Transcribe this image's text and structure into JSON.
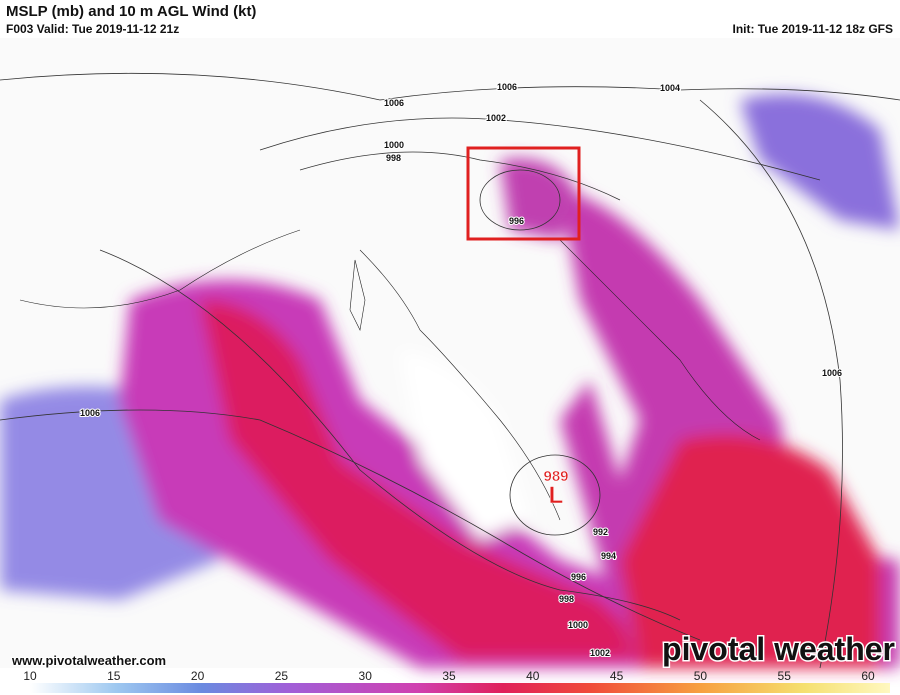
{
  "header": {
    "title": "MSLP (mb) and 10 m AGL Wind (kt)",
    "valid": "F003 Valid: Tue 2019-11-12 21z",
    "init": "Init: Tue 2019-11-12 18z GFS"
  },
  "isobar_labels": [
    "1006",
    "1006",
    "1004",
    "1002",
    "1000",
    "998",
    "996",
    "1006",
    "1006",
    "992",
    "994",
    "996",
    "998",
    "1000",
    "1002"
  ],
  "low": {
    "pressure": "989",
    "symbol": "L"
  },
  "footer": {
    "website": "www.pivotalweather.com",
    "logo": "pivotal weather"
  },
  "colorbar": {
    "ticks": [
      10,
      15,
      20,
      25,
      30,
      35,
      40,
      45,
      50,
      55,
      60
    ]
  }
}
